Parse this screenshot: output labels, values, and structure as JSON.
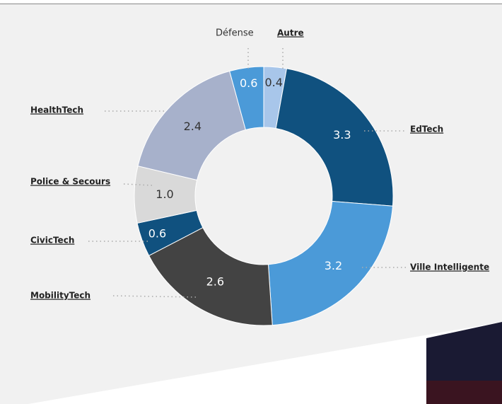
{
  "chart_data": {
    "type": "pie",
    "categories": [
      "Autre",
      "EdTech",
      "Ville Intelligente",
      "MobilityTech",
      "CivicTech",
      "Police & Secours",
      "HealthTech",
      "Défense"
    ],
    "values": [
      0.4,
      3.3,
      3.2,
      2.6,
      0.6,
      1.0,
      2.4,
      0.6
    ],
    "value_labels": [
      "0.4",
      "3.3",
      "3.2",
      "2.6",
      "0.6",
      "1.0",
      "2.4",
      "0.6"
    ],
    "colors": [
      "#a8c6ea",
      "#10517f",
      "#4b9ad8",
      "#434343",
      "#10517f",
      "#d9d9d9",
      "#a7b1cb",
      "#4b9ad8"
    ]
  }
}
